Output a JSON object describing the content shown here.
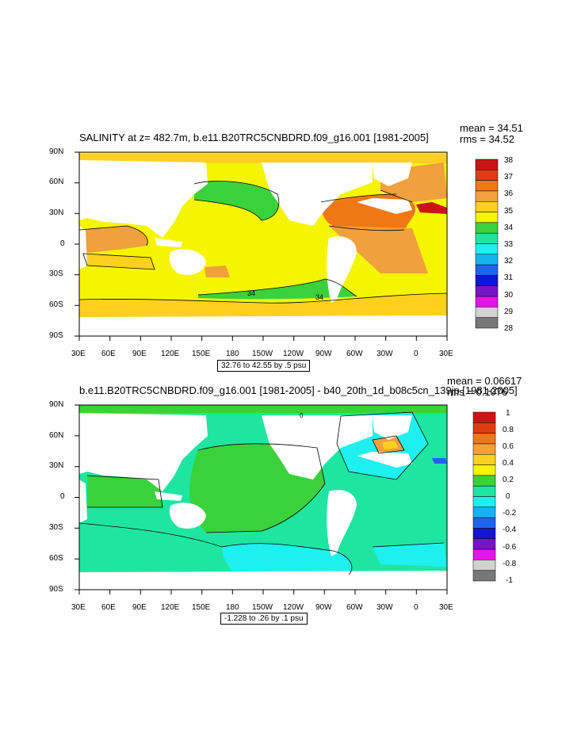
{
  "panels": [
    {
      "title": "SALINITY at z= 482.7m, b.e11.B20TRC5CNBDRD.f09_g16.001 [1981-2005]",
      "mean": "mean = 34.51",
      "rms": "rms = 34.52",
      "range": "32.76 to 42.55 by .5 psu",
      "lat_labels": [
        "90N",
        "60N",
        "30N",
        "0",
        "30S",
        "60S",
        "90S"
      ],
      "lon_labels": [
        "30E",
        "60E",
        "90E",
        "120E",
        "150E",
        "180",
        "150W",
        "120W",
        "90W",
        "60W",
        "30W",
        "0",
        "30E"
      ],
      "contour_labels": [
        "34",
        "34"
      ],
      "colorbar_labels": [
        "38",
        "37",
        "36",
        "35",
        "34",
        "33",
        "32",
        "31",
        "30",
        "29",
        "28"
      ],
      "colorbar_colors": [
        "#cc1414",
        "#e03c14",
        "#f07814",
        "#f0a03c",
        "#ffd11e",
        "#f5f500",
        "#3ad23a",
        "#1ee6a0",
        "#1ef0f0",
        "#14b4f0",
        "#1e64f0",
        "#1414d2",
        "#7814c8",
        "#e614e6",
        "#d2d2d2",
        "#787878"
      ]
    },
    {
      "title": "b.e11.B20TRC5CNBDRD.f09_g16.001 [1981-2005] - b40_20th_1d_b08c5cn_139jp [1981-2005]",
      "mean": "mean = 0.06617",
      "rms": "rms = 0.1076",
      "range": "-1.228 to .26 by .1 psu",
      "lat_labels": [
        "90N",
        "60N",
        "30N",
        "0",
        "30S",
        "60S",
        "90S"
      ],
      "lon_labels": [
        "30E",
        "60E",
        "90E",
        "120E",
        "150E",
        "180",
        "150W",
        "120W",
        "90W",
        "60W",
        "30W",
        "0",
        "30E"
      ],
      "contour_labels": [
        "0"
      ],
      "colorbar_labels": [
        "1",
        "0.8",
        "0.6",
        "0.4",
        "0.2",
        "0",
        "-0.2",
        "-0.4",
        "-0.6",
        "-0.8",
        "-1"
      ],
      "colorbar_colors": [
        "#cc1414",
        "#e03c14",
        "#f07814",
        "#f0a03c",
        "#ffd11e",
        "#f5f500",
        "#3ad23a",
        "#1ee6a0",
        "#1ef0f0",
        "#14b4f0",
        "#1e64f0",
        "#1414d2",
        "#7814c8",
        "#e614e6",
        "#d2d2d2",
        "#787878"
      ]
    }
  ]
}
